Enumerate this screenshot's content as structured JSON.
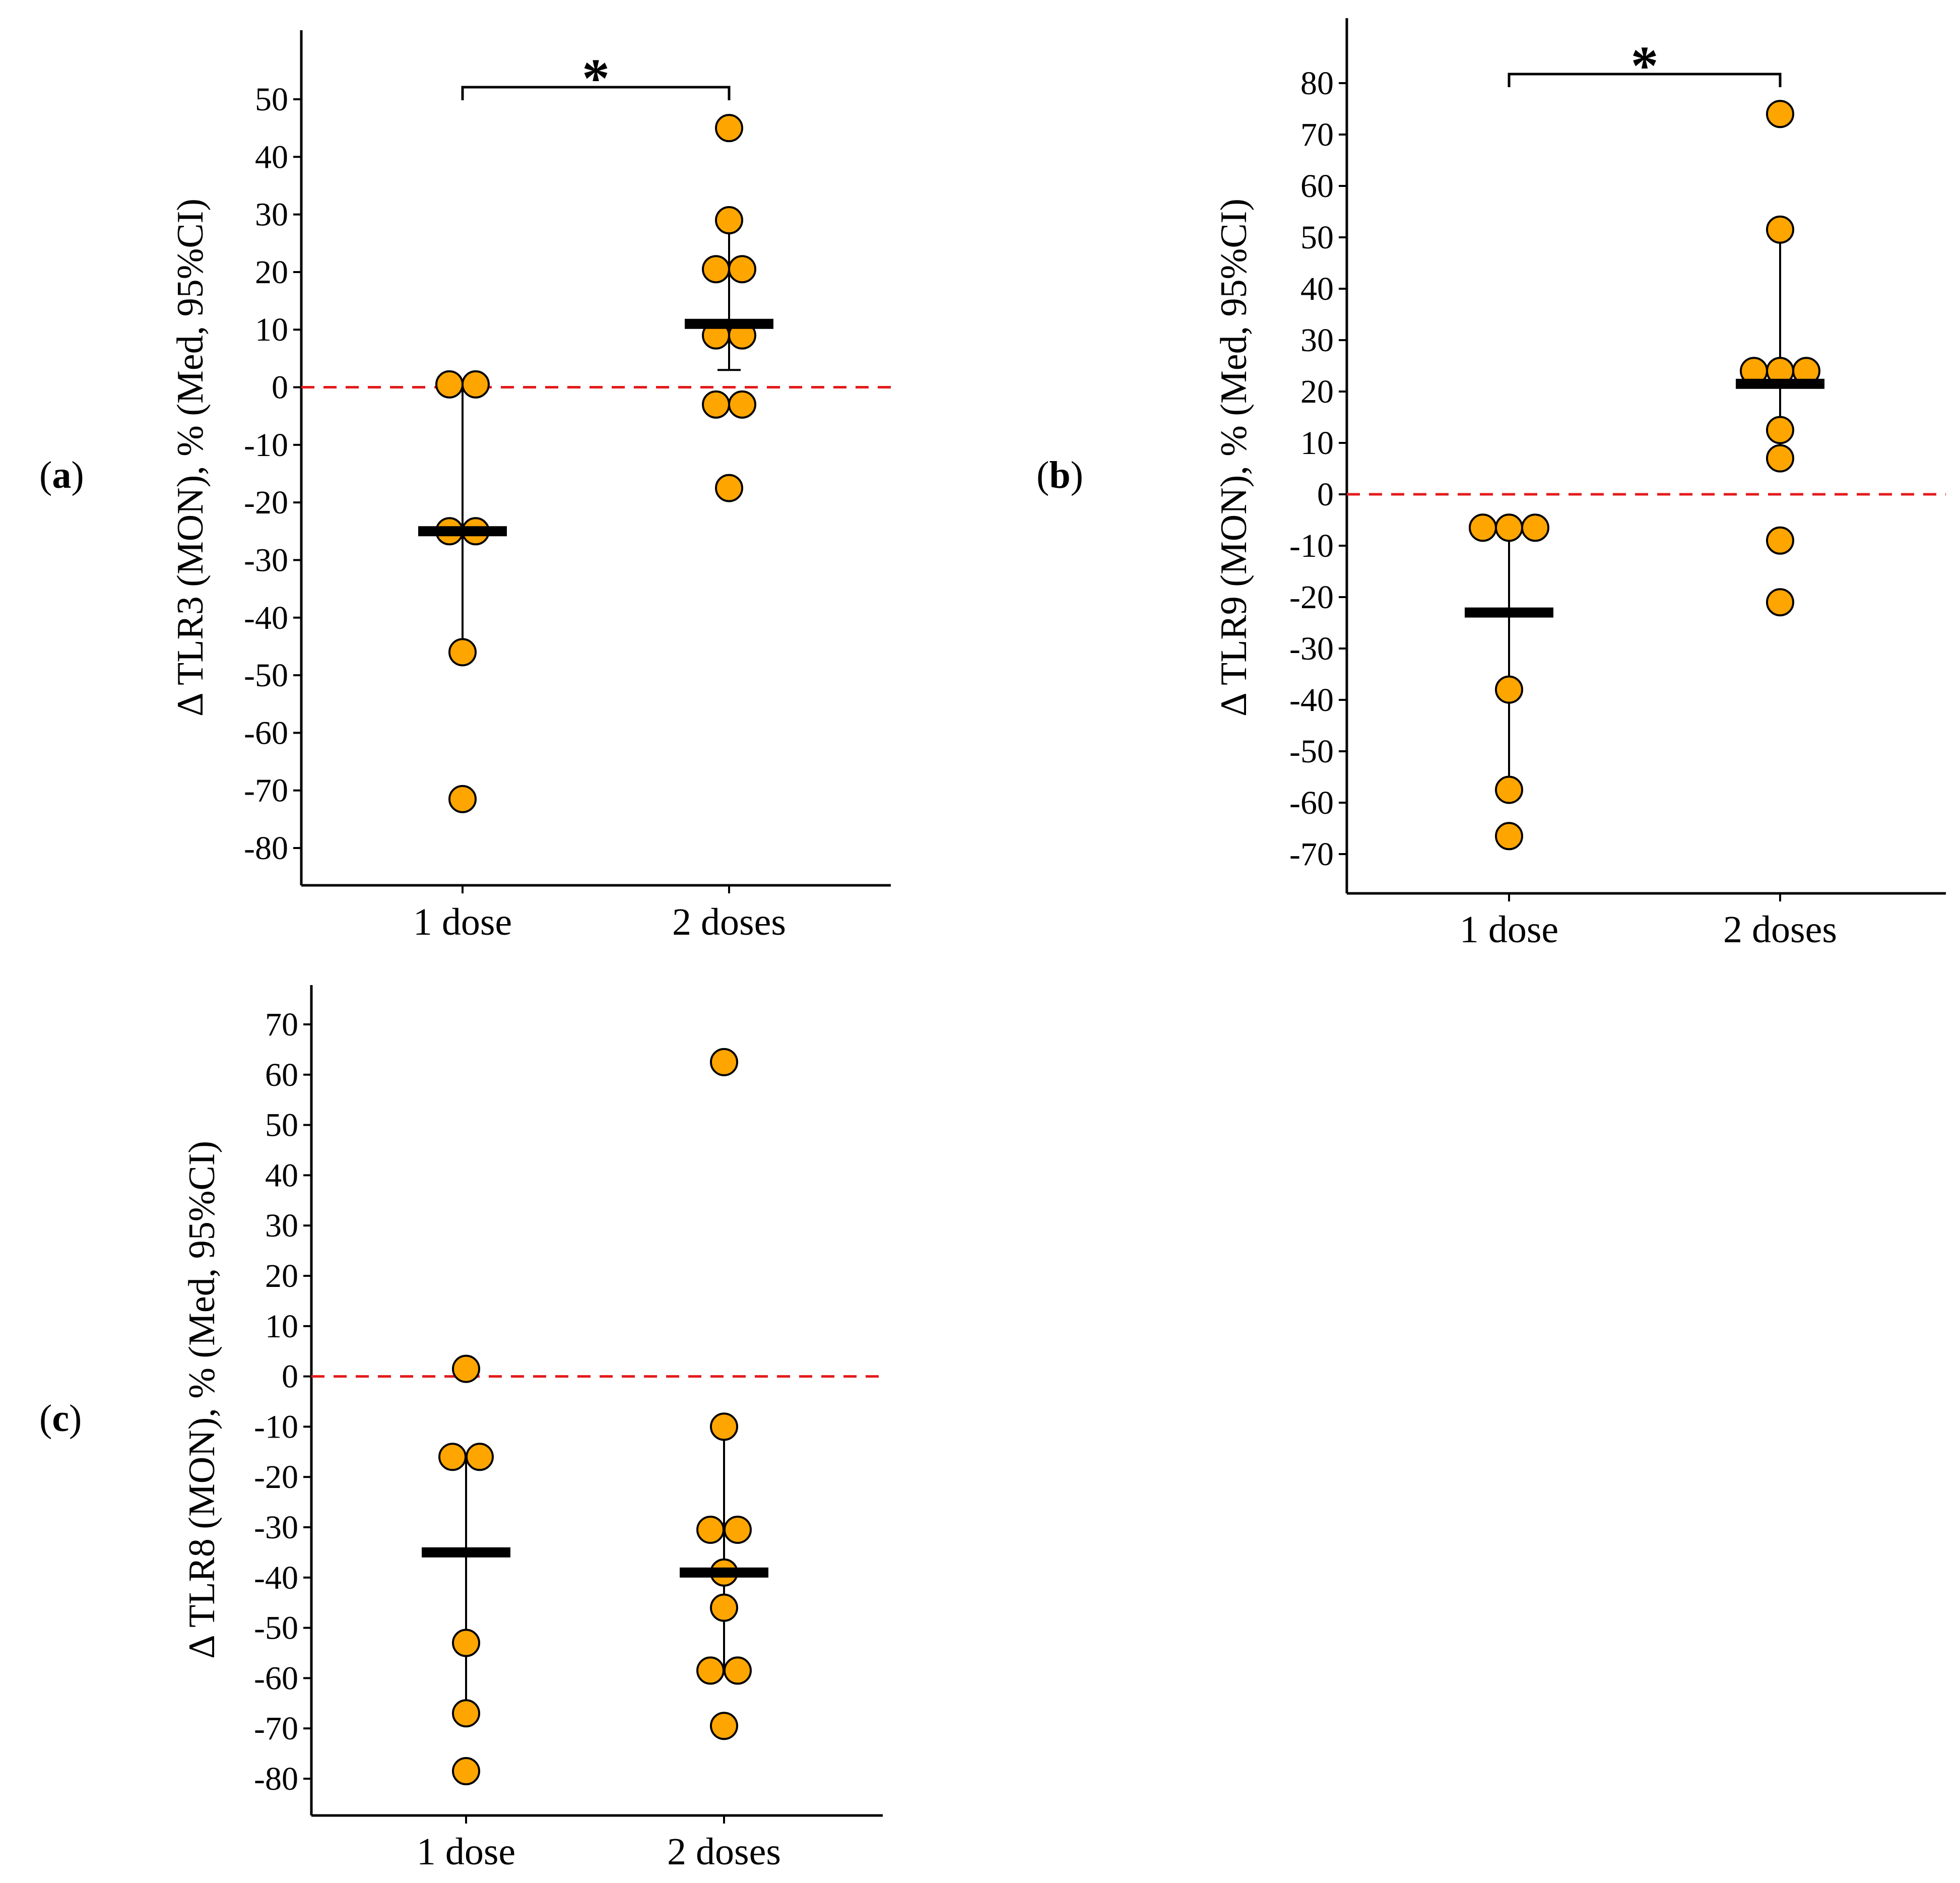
{
  "chart_data": [
    {
      "type": "scatter",
      "panel_label": "(a)",
      "panel_letter": "a",
      "ylabel": "Δ TLR3 (MON), % (Med, 95%CI)",
      "categories": [
        "1 dose",
        "2 doses"
      ],
      "ylim": [
        -85,
        60
      ],
      "yticks": [
        50,
        40,
        30,
        20,
        10,
        0,
        -10,
        -20,
        -30,
        -40,
        -50,
        -60,
        -70,
        -80
      ],
      "reference_line": 0,
      "significance": "*",
      "colors": {
        "point": "#FFA500",
        "reference": "#E41A1C",
        "axis": "#000000"
      },
      "series": [
        {
          "name": "1 dose",
          "values": [
            0.5,
            0.5,
            -25,
            -25,
            -46,
            -71.5
          ],
          "offsets": [
            -1,
            1,
            -1,
            1,
            0,
            0
          ],
          "median": -25,
          "ci": [
            -46,
            0.5
          ]
        },
        {
          "name": "2 doses",
          "values": [
            45,
            29,
            20.5,
            20.5,
            9,
            9,
            -3,
            -3,
            -17.5
          ],
          "offsets": [
            0,
            0,
            -1,
            1,
            -1,
            1,
            -1,
            1,
            0
          ],
          "median": 11,
          "ci": [
            3,
            29
          ]
        }
      ]
    },
    {
      "type": "scatter",
      "panel_label": "(b)",
      "panel_letter": "b",
      "ylabel": "Δ TLR9 (MON), % (Med, 95%CI)",
      "categories": [
        "1 dose",
        "2 doses"
      ],
      "ylim": [
        -78,
        93
      ],
      "yticks": [
        80,
        70,
        60,
        50,
        40,
        30,
        20,
        10,
        0,
        -10,
        -20,
        -30,
        -40,
        -50,
        -60,
        -70
      ],
      "reference_line": 0,
      "significance": "*",
      "colors": {
        "point": "#FFA500",
        "reference": "#E41A1C",
        "axis": "#000000"
      },
      "series": [
        {
          "name": "1 dose",
          "values": [
            -6.5,
            -6.5,
            -6.5,
            -38,
            -57.5,
            -66.5
          ],
          "offsets": [
            -1,
            0,
            1,
            0,
            0,
            0
          ],
          "median": -23,
          "ci": [
            -57.5,
            -6.5
          ]
        },
        {
          "name": "2 doses",
          "values": [
            74,
            51.5,
            24,
            24,
            24,
            12.5,
            7,
            -9,
            -21
          ],
          "offsets": [
            0,
            0,
            -1,
            0,
            1,
            0,
            0,
            0,
            0
          ],
          "median": 21.5,
          "ci": [
            7,
            51.5
          ]
        }
      ]
    },
    {
      "type": "scatter",
      "panel_label": "(c)",
      "panel_letter": "c",
      "ylabel": "Δ TLR8 (MON), % (Med, 95%CI)",
      "categories": [
        "1 dose",
        "2 doses"
      ],
      "ylim": [
        -87,
        77
      ],
      "yticks": [
        70,
        60,
        50,
        40,
        30,
        20,
        10,
        0,
        -10,
        -20,
        -30,
        -40,
        -50,
        -60,
        -70,
        -80
      ],
      "reference_line": 0,
      "significance": "",
      "colors": {
        "point": "#FFA500",
        "reference": "#E41A1C",
        "axis": "#000000"
      },
      "series": [
        {
          "name": "1 dose",
          "values": [
            1.5,
            -16,
            -16,
            -53,
            -67,
            -78.5
          ],
          "offsets": [
            0,
            -1,
            1,
            0,
            0,
            0
          ],
          "median": -35,
          "ci": [
            -67,
            -16
          ]
        },
        {
          "name": "2 doses",
          "values": [
            62.5,
            -10,
            -30.5,
            -30.5,
            -39,
            -46,
            -58.5,
            -58.5,
            -69.5
          ],
          "offsets": [
            0,
            0,
            -1,
            1,
            0,
            0,
            -1,
            1,
            0
          ],
          "median": -39,
          "ci": [
            -58.5,
            -10
          ]
        }
      ]
    }
  ]
}
